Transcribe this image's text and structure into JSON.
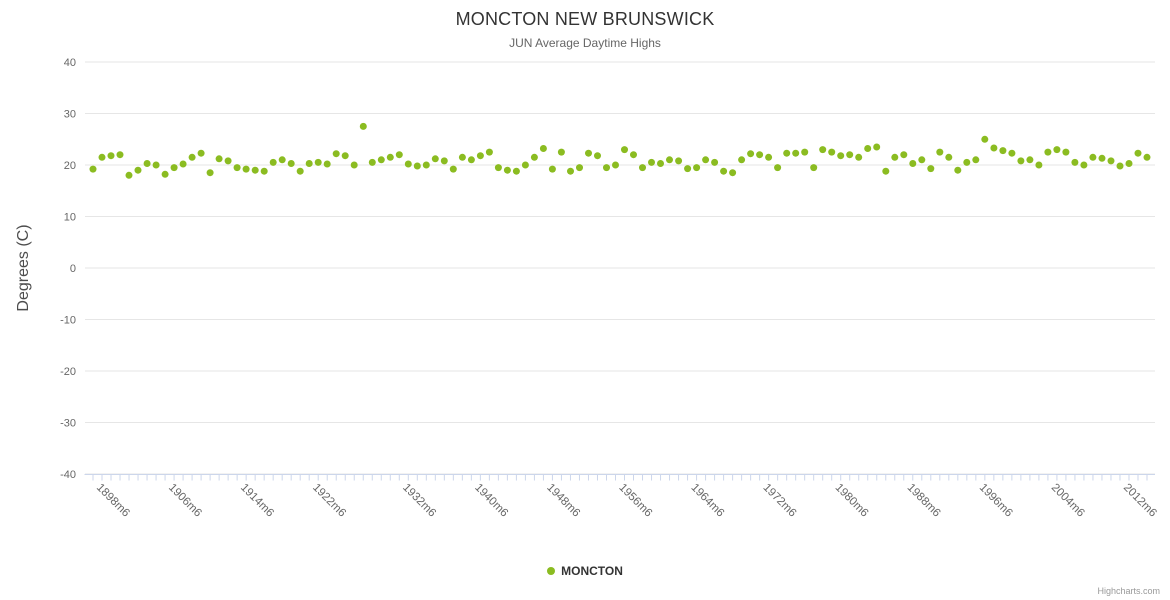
{
  "chart_data": {
    "type": "scatter",
    "title": "MONCTON NEW BRUNSWICK",
    "subtitle": "JUN Average Daytime Highs",
    "ylabel": "Degrees (C)",
    "ylim": [
      -40,
      40
    ],
    "y_ticks": [
      40,
      30,
      20,
      10,
      0,
      -10,
      -20,
      -30,
      -40
    ],
    "y_tick_interval": 10,
    "grid": "horizontal",
    "legend_position": "bottom-center",
    "x_tick_labels": [
      "1898m6",
      "1906m6",
      "1914m6",
      "1922m6",
      "1932m6",
      "1940m6",
      "1948m6",
      "1956m6",
      "1964m6",
      "1972m6",
      "1980m6",
      "1988m6",
      "1996m6",
      "2004m6",
      "2012m6"
    ],
    "series": [
      {
        "name": "MONCTON",
        "color": "#8bbc21",
        "points": [
          [
            1898,
            19.2
          ],
          [
            1899,
            21.5
          ],
          [
            1900,
            21.8
          ],
          [
            1901,
            22
          ],
          [
            1902,
            18
          ],
          [
            1903,
            19
          ],
          [
            1904,
            20.3
          ],
          [
            1905,
            20
          ],
          [
            1906,
            18.2
          ],
          [
            1907,
            19.5
          ],
          [
            1908,
            20.2
          ],
          [
            1909,
            21.5
          ],
          [
            1910,
            22.3
          ],
          [
            1911,
            18.5
          ],
          [
            1912,
            21.2
          ],
          [
            1913,
            20.8
          ],
          [
            1914,
            19.5
          ],
          [
            1915,
            19.2
          ],
          [
            1916,
            19
          ],
          [
            1917,
            18.8
          ],
          [
            1918,
            20.5
          ],
          [
            1919,
            21
          ],
          [
            1920,
            20.3
          ],
          [
            1921,
            18.8
          ],
          [
            1922,
            20.3
          ],
          [
            1923,
            20.5
          ],
          [
            1924,
            20.2
          ],
          [
            1925,
            22.2
          ],
          [
            1926,
            21.8
          ],
          [
            1927,
            20
          ],
          [
            1928,
            27.5
          ],
          [
            1929,
            20.5
          ],
          [
            1930,
            21
          ],
          [
            1931,
            21.5
          ],
          [
            1932,
            22
          ],
          [
            1933,
            20.2
          ],
          [
            1934,
            19.8
          ],
          [
            1935,
            20
          ],
          [
            1936,
            21.2
          ],
          [
            1937,
            20.8
          ],
          [
            1938,
            19.2
          ],
          [
            1939,
            21.5
          ],
          [
            1940,
            21
          ],
          [
            1941,
            21.8
          ],
          [
            1942,
            22.5
          ],
          [
            1943,
            19.5
          ],
          [
            1944,
            19
          ],
          [
            1945,
            18.8
          ],
          [
            1946,
            20
          ],
          [
            1947,
            21.5
          ],
          [
            1948,
            23.2
          ],
          [
            1949,
            19.2
          ],
          [
            1950,
            22.5
          ],
          [
            1951,
            18.8
          ],
          [
            1952,
            19.5
          ],
          [
            1953,
            22.3
          ],
          [
            1954,
            21.8
          ],
          [
            1955,
            19.5
          ],
          [
            1956,
            20
          ],
          [
            1957,
            23
          ],
          [
            1958,
            22
          ],
          [
            1959,
            19.5
          ],
          [
            1960,
            20.5
          ],
          [
            1961,
            20.3
          ],
          [
            1962,
            21
          ],
          [
            1963,
            20.8
          ],
          [
            1964,
            19.3
          ],
          [
            1965,
            19.5
          ],
          [
            1966,
            21
          ],
          [
            1967,
            20.5
          ],
          [
            1968,
            18.8
          ],
          [
            1969,
            18.5
          ],
          [
            1970,
            21
          ],
          [
            1971,
            22.2
          ],
          [
            1972,
            22
          ],
          [
            1973,
            21.5
          ],
          [
            1974,
            19.5
          ],
          [
            1975,
            22.3
          ],
          [
            1976,
            22.3
          ],
          [
            1977,
            22.5
          ],
          [
            1978,
            19.5
          ],
          [
            1979,
            23
          ],
          [
            1980,
            22.5
          ],
          [
            1981,
            21.8
          ],
          [
            1982,
            22
          ],
          [
            1983,
            21.5
          ],
          [
            1984,
            23.2
          ],
          [
            1985,
            23.5
          ],
          [
            1986,
            18.8
          ],
          [
            1987,
            21.5
          ],
          [
            1988,
            22
          ],
          [
            1989,
            20.3
          ],
          [
            1990,
            21
          ],
          [
            1991,
            19.3
          ],
          [
            1992,
            22.5
          ],
          [
            1993,
            21.5
          ],
          [
            1994,
            19
          ],
          [
            1995,
            20.5
          ],
          [
            1996,
            21
          ],
          [
            1997,
            25
          ],
          [
            1998,
            23.3
          ],
          [
            1999,
            22.8
          ],
          [
            2000,
            22.3
          ],
          [
            2001,
            20.8
          ],
          [
            2002,
            21
          ],
          [
            2003,
            20
          ],
          [
            2004,
            22.5
          ],
          [
            2005,
            23
          ],
          [
            2006,
            22.5
          ],
          [
            2007,
            20.5
          ],
          [
            2008,
            20
          ],
          [
            2009,
            21.5
          ],
          [
            2010,
            21.3
          ],
          [
            2011,
            20.8
          ],
          [
            2012,
            19.8
          ],
          [
            2013,
            20.3
          ],
          [
            2014,
            22.3
          ],
          [
            2015,
            21.5
          ]
        ]
      }
    ],
    "colors": {
      "point": "#8bbc21",
      "title": "#333333",
      "subtitle": "#666666",
      "axis_label": "#666666",
      "grid_line": "#e6e6e6",
      "axis_line": "#ccd6eb"
    }
  },
  "credits": {
    "label": "Highcharts.com"
  }
}
